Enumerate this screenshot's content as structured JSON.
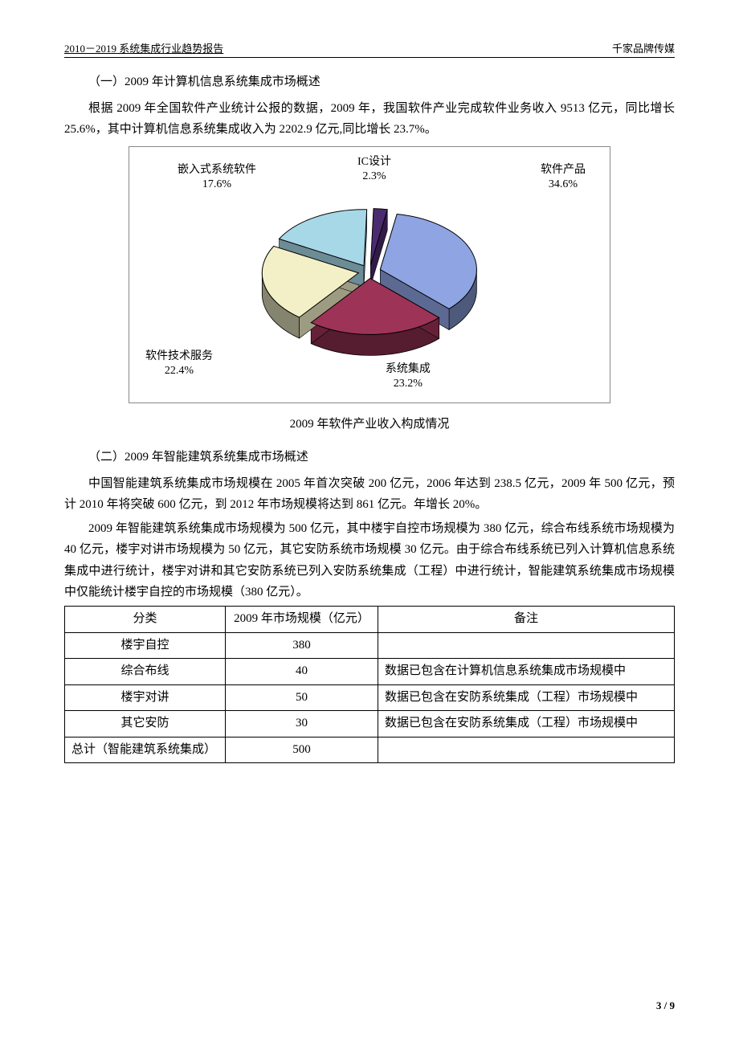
{
  "header": {
    "left": "2010－2019 系统集成行业趋势报告",
    "right": "千家品牌传媒"
  },
  "section1": {
    "heading": "（一）2009 年计算机信息系统集成市场概述",
    "para": "根据 2009 年全国软件产业统计公报的数据，2009 年，我国软件产业完成软件业务收入 9513 亿元，同比增长 25.6%，其中计算机信息系统集成收入为 2202.9 亿元,同比增长 23.7%。"
  },
  "pie_chart": {
    "type": "pie-3d-exploded",
    "border_color": "#888888",
    "background_color": "#ffffff",
    "label_fontsize": 14,
    "label_color": "#000000",
    "slices": [
      {
        "name": "软件产品",
        "percent": 34.6,
        "label": "软件产品\n34.6%",
        "fill": "#8ea4e3",
        "stroke": "#000000"
      },
      {
        "name": "系统集成",
        "percent": 23.2,
        "label": "系统集成\n23.2%",
        "fill": "#9e3358",
        "stroke": "#000000"
      },
      {
        "name": "软件技术服务",
        "percent": 22.4,
        "label": "软件技术服务\n22.4%",
        "fill": "#f3f0c8",
        "stroke": "#000000"
      },
      {
        "name": "嵌入式系统软件",
        "percent": 17.6,
        "label": "嵌入式系统软件\n17.6%",
        "fill": "#a7d8e8",
        "stroke": "#000000"
      },
      {
        "name": "IC设计",
        "percent": 2.3,
        "label": "IC设计\n2.3%",
        "fill": "#4b2b70",
        "stroke": "#000000"
      }
    ],
    "caption": "2009 年软件产业收入构成情况"
  },
  "section2": {
    "heading": "（二）2009 年智能建筑系统集成市场概述",
    "para1": "中国智能建筑系统集成市场规模在 2005 年首次突破 200 亿元，2006 年达到 238.5 亿元，2009 年 500 亿元，预计 2010 年将突破 600 亿元，到 2012 年市场规模将达到 861 亿元。年增长 20%。",
    "para2": "2009 年智能建筑系统集成市场规模为 500 亿元，其中楼宇自控市场规模为 380 亿元，综合布线系统市场规模为 40 亿元，楼宇对讲市场规模为 50 亿元，其它安防系统市场规模 30 亿元。由于综合布线系统已列入计算机信息系统集成中进行统计，楼宇对讲和其它安防系统已列入安防系统集成（工程）中进行统计，智能建筑系统集成市场规模中仅能统计楼宇自控的市场规模（380 亿元）。"
  },
  "table": {
    "columns": {
      "c1": "分类",
      "c2": "2009 年市场规模（亿元）",
      "c3": "备注"
    },
    "rows": [
      {
        "cat": "楼宇自控",
        "val": "380",
        "note": ""
      },
      {
        "cat": "综合布线",
        "val": "40",
        "note": "数据已包含在计算机信息系统集成市场规模中"
      },
      {
        "cat": "楼宇对讲",
        "val": "50",
        "note": "数据已包含在安防系统集成（工程）市场规模中"
      },
      {
        "cat": "其它安防",
        "val": "30",
        "note": "数据已包含在安防系统集成（工程）市场规模中"
      },
      {
        "cat": "总计（智能建筑系统集成）",
        "val": "500",
        "note": ""
      }
    ]
  },
  "footer": {
    "page": "3 / 9"
  }
}
